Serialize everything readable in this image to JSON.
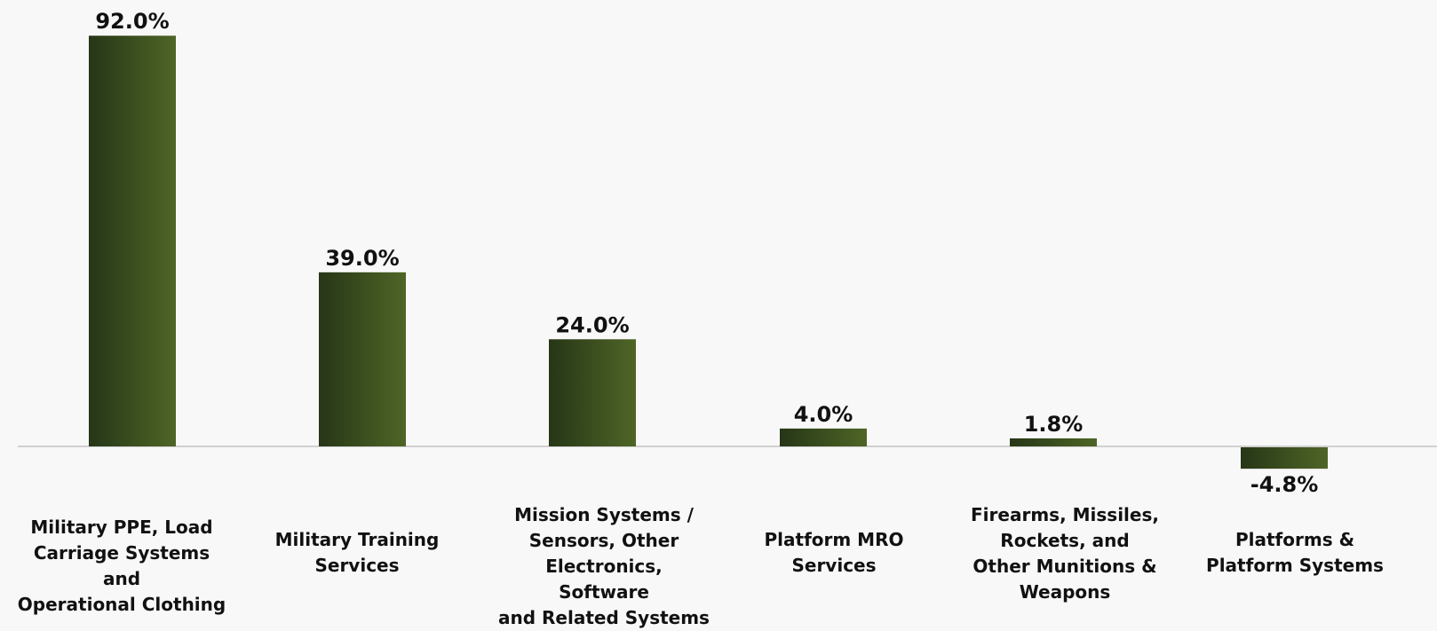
{
  "chart_data": {
    "type": "bar",
    "categories": [
      "Military PPE, Load\nCarriage Systems and\nOperational Clothing",
      "Military Training\nServices",
      "Mission Systems /\nSensors, Other\nElectronics, Software\nand Related Systems",
      "Platform MRO\nServices",
      "Firearms, Missiles,\nRockets, and\nOther Munitions &\nWeapons",
      "Platforms &\nPlatform Systems"
    ],
    "values": [
      92.0,
      39.0,
      24.0,
      4.0,
      1.8,
      -4.8
    ],
    "value_labels": [
      "92.0%",
      "39.0%",
      "24.0%",
      "4.0%",
      "1.8%",
      "-4.8%"
    ],
    "unit": "%",
    "ylim": [
      -10,
      100
    ],
    "grid": false,
    "legend": "none",
    "colors": {
      "bar_dark": "#263617",
      "bar_light": "#4f6526",
      "baseline": "#d0d0d0",
      "text": "#111111",
      "background": "#f8f8f8"
    }
  }
}
